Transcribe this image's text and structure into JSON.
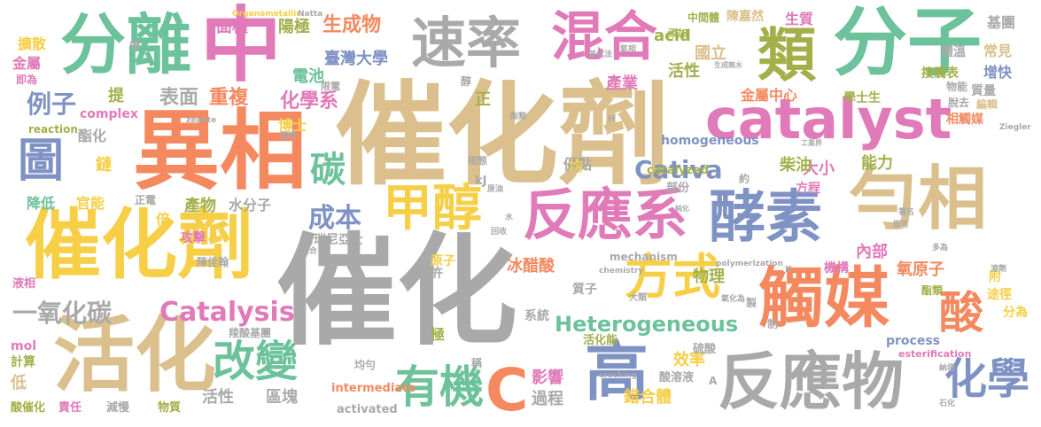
{
  "palette": {
    "tan": "#dbc08d",
    "gray": "#a9a9a9",
    "orange": "#f4895f",
    "pink": "#e07ab8",
    "yellow": "#f6cf47",
    "green": "#6cc29a",
    "blue": "#7f92c4",
    "olive": "#a3b04a",
    "background": "#ffffff"
  },
  "words": [
    {
      "text": "催化劑",
      "color": "tan"
    },
    {
      "text": "催化",
      "color": "gray"
    },
    {
      "text": "異相",
      "color": "orange"
    },
    {
      "text": "中",
      "color": "pink"
    },
    {
      "text": "分離",
      "color": "green"
    },
    {
      "text": "分子",
      "color": "green"
    },
    {
      "text": "類",
      "color": "olive"
    },
    {
      "text": "混合",
      "color": "pink"
    },
    {
      "text": "速率",
      "color": "gray"
    },
    {
      "text": "catalyst",
      "color": "pink"
    },
    {
      "text": "勻相",
      "color": "tan"
    },
    {
      "text": "酵素",
      "color": "blue"
    },
    {
      "text": "催化劑",
      "color": "yellow"
    },
    {
      "text": "觸媒",
      "color": "orange"
    },
    {
      "text": "活化",
      "color": "tan"
    },
    {
      "text": "高",
      "color": "blue"
    },
    {
      "text": "反應物",
      "color": "gray"
    },
    {
      "text": "反應系",
      "color": "pink"
    },
    {
      "text": "甲醇",
      "color": "yellow"
    },
    {
      "text": "方式",
      "color": "yellow"
    },
    {
      "text": "改變",
      "color": "green"
    },
    {
      "text": "有機",
      "color": "green"
    },
    {
      "text": "C",
      "color": "orange"
    },
    {
      "text": "化學",
      "color": "blue"
    },
    {
      "text": "酸",
      "color": "orange"
    },
    {
      "text": "圖",
      "color": "blue"
    },
    {
      "text": "碳",
      "color": "green"
    },
    {
      "text": "Cativa",
      "color": "blue"
    },
    {
      "text": "Catalysis",
      "color": "pink"
    },
    {
      "text": "Heterogeneous",
      "color": "green"
    },
    {
      "text": "一氧化碳",
      "color": "gray"
    },
    {
      "text": "成本",
      "color": "blue"
    },
    {
      "text": "例子",
      "color": "blue"
    },
    {
      "text": "表面",
      "color": "gray"
    },
    {
      "text": "重複",
      "color": "orange"
    },
    {
      "text": "化學系",
      "color": "pink"
    },
    {
      "text": "生成物",
      "color": "orange"
    },
    {
      "text": "臺灣大學",
      "color": "blue"
    },
    {
      "text": "電池",
      "color": "green"
    },
    {
      "text": "面積",
      "color": "pink"
    },
    {
      "text": "陽極",
      "color": "olive"
    },
    {
      "text": "acid",
      "color": "olive"
    },
    {
      "text": "國立",
      "color": "tan"
    },
    {
      "text": "活性",
      "color": "olive"
    },
    {
      "text": "產業",
      "color": "pink"
    },
    {
      "text": "金屬中心",
      "color": "orange"
    },
    {
      "text": "大小",
      "color": "pink"
    },
    {
      "text": "柴油",
      "color": "olive"
    },
    {
      "text": "能力",
      "color": "olive"
    },
    {
      "text": "內部",
      "color": "pink"
    },
    {
      "text": "氧原子",
      "color": "orange"
    },
    {
      "text": "物理",
      "color": "olive"
    },
    {
      "text": "冰醋酸",
      "color": "orange"
    },
    {
      "text": "效率",
      "color": "yellow"
    },
    {
      "text": "活性",
      "color": "gray"
    },
    {
      "text": "區塊",
      "color": "gray"
    },
    {
      "text": "過程",
      "color": "gray"
    },
    {
      "text": "影響",
      "color": "pink"
    },
    {
      "text": "錯合體",
      "color": "yellow"
    },
    {
      "text": "process",
      "color": "blue"
    },
    {
      "text": "esterification",
      "color": "pink"
    },
    {
      "text": "增快",
      "color": "blue"
    },
    {
      "text": "常見",
      "color": "tan"
    },
    {
      "text": "基團",
      "color": "gray"
    },
    {
      "text": "生質",
      "color": "pink"
    },
    {
      "text": "學士生",
      "color": "olive"
    },
    {
      "text": "相觸媒",
      "color": "orange"
    },
    {
      "text": "陳嘉然",
      "color": "tan"
    },
    {
      "text": "擴散",
      "color": "yellow"
    },
    {
      "text": "金屬",
      "color": "pink"
    },
    {
      "text": "降低",
      "color": "green"
    },
    {
      "text": "官能",
      "color": "yellow"
    },
    {
      "text": "酯化",
      "color": "gray"
    },
    {
      "text": "鏈",
      "color": "yellow"
    },
    {
      "text": "產物",
      "color": "olive"
    },
    {
      "text": "水分子",
      "color": "gray"
    },
    {
      "text": "博士",
      "color": "yellow"
    },
    {
      "text": "優點",
      "color": "gray"
    },
    {
      "text": "攻擊",
      "color": "pink"
    },
    {
      "text": "陳佳翰",
      "color": "gray"
    },
    {
      "text": "阿瑞尼亞士",
      "color": "gray"
    },
    {
      "text": "原子",
      "color": "yellow"
    },
    {
      "text": "質子",
      "color": "gray"
    },
    {
      "text": "系統",
      "color": "gray"
    },
    {
      "text": "活化能",
      "color": "olive"
    },
    {
      "text": "硫酸",
      "color": "gray"
    },
    {
      "text": "機構",
      "color": "pink"
    },
    {
      "text": "途徑",
      "color": "yellow"
    },
    {
      "text": "分為",
      "color": "yellow"
    },
    {
      "text": "附",
      "color": "yellow"
    },
    {
      "text": "酯類",
      "color": "olive"
    },
    {
      "text": "接觸表",
      "color": "olive"
    },
    {
      "text": "質量",
      "color": "gray"
    },
    {
      "text": "體溫",
      "color": "gray"
    },
    {
      "text": "中間體",
      "color": "olive"
    },
    {
      "text": "添加",
      "color": "olive"
    },
    {
      "text": "homogeneous",
      "color": "blue"
    },
    {
      "text": "catalyzed",
      "color": "olive"
    },
    {
      "text": "方程",
      "color": "pink"
    },
    {
      "text": "部份",
      "color": "gray"
    },
    {
      "text": "羧酸基團",
      "color": "gray"
    },
    {
      "text": "均勻",
      "color": "gray"
    },
    {
      "text": "酸溶液",
      "color": "gray"
    },
    {
      "text": "activated",
      "color": "gray"
    },
    {
      "text": "intermediate",
      "color": "orange"
    },
    {
      "text": "mechanism",
      "color": "gray"
    },
    {
      "text": "reaction",
      "color": "olive"
    },
    {
      "text": "complex",
      "color": "pink"
    },
    {
      "text": "mol",
      "color": "pink"
    },
    {
      "text": "計算",
      "color": "olive"
    },
    {
      "text": "低",
      "color": "tan"
    },
    {
      "text": "酸催化",
      "color": "olive"
    },
    {
      "text": "責任",
      "color": "pink"
    },
    {
      "text": "減慢",
      "color": "gray"
    },
    {
      "text": "物質",
      "color": "olive"
    },
    {
      "text": "即為",
      "color": "pink"
    },
    {
      "text": "倍",
      "color": "yellow"
    },
    {
      "text": "正電",
      "color": "gray"
    },
    {
      "text": "提",
      "color": "olive"
    },
    {
      "text": "正",
      "color": "olive"
    },
    {
      "text": "均",
      "color": "yellow"
    },
    {
      "text": "相態",
      "color": "gray"
    },
    {
      "text": "kJ",
      "color": "gray"
    },
    {
      "text": "極",
      "color": "olive"
    },
    {
      "text": "稱",
      "color": "gray"
    },
    {
      "text": "些許",
      "color": "gray"
    },
    {
      "text": "A",
      "color": "gray"
    },
    {
      "text": "約",
      "color": "gray"
    },
    {
      "text": "脫去",
      "color": "gray"
    },
    {
      "text": "物能",
      "color": "gray"
    },
    {
      "text": "編輯",
      "color": "tan"
    },
    {
      "text": "限電",
      "color": "gray"
    },
    {
      "text": "製",
      "color": "gray"
    },
    {
      "text": "帶",
      "color": "gray"
    },
    {
      "text": "Organometallic",
      "color": "yellow"
    },
    {
      "text": "Natta",
      "color": "gray"
    },
    {
      "text": "Ziegler",
      "color": "gray"
    },
    {
      "text": "polymerization",
      "color": "gray"
    },
    {
      "text": "chemistry",
      "color": "gray"
    },
    {
      "text": "cracking",
      "color": "gray"
    },
    {
      "text": "zeolite",
      "color": "gray"
    },
    {
      "text": "K",
      "color": "gray"
    },
    {
      "text": "H",
      "color": "gray"
    },
    {
      "text": "氧化為",
      "color": "gray"
    },
    {
      "text": "大類",
      "color": "gray"
    },
    {
      "text": "石化",
      "color": "gray"
    },
    {
      "text": "納塔",
      "color": "gray"
    },
    {
      "text": "氣相",
      "color": "gray"
    },
    {
      "text": "工業界",
      "color": "gray"
    },
    {
      "text": "水",
      "color": "gray"
    },
    {
      "text": "醇",
      "color": "gray"
    },
    {
      "text": "製",
      "color": "gray"
    },
    {
      "text": "液相",
      "color": "pink"
    },
    {
      "text": "固相",
      "color": "gray"
    },
    {
      "text": "催化法",
      "color": "gray"
    },
    {
      "text": "生成無水",
      "color": "gray"
    },
    {
      "text": "即可",
      "color": "gray"
    },
    {
      "text": "多為",
      "color": "gray"
    },
    {
      "text": "著名",
      "color": "gray"
    },
    {
      "text": "聚合",
      "color": "gray"
    },
    {
      "text": "回收",
      "color": "gray"
    },
    {
      "text": "原油",
      "color": "gray"
    },
    {
      "text": "酯類",
      "color": "gray"
    },
    {
      "text": "制",
      "color": "gray"
    },
    {
      "text": "純化",
      "color": "gray"
    },
    {
      "text": "溶劑",
      "color": "gray"
    }
  ]
}
